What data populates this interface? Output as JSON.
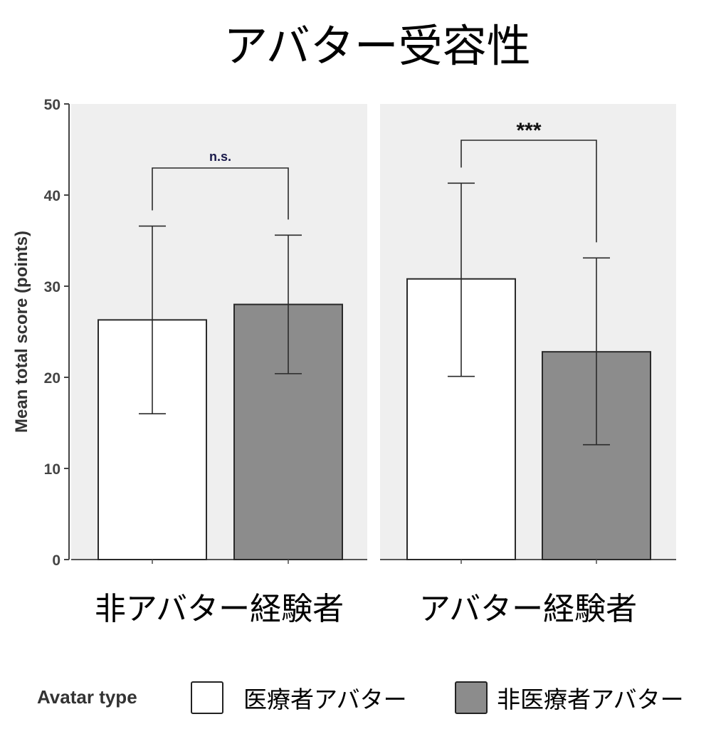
{
  "chart_data": {
    "type": "bar",
    "title": "アバター受容性",
    "ylabel": "Mean total score (points)",
    "ylim": [
      0,
      50
    ],
    "yticks": [
      0,
      10,
      20,
      30,
      40,
      50
    ],
    "grid": false,
    "legend": {
      "title": "Avatar type",
      "placement": "bottom",
      "items": [
        {
          "label": "医療者アバター",
          "color": "#ffffff"
        },
        {
          "label": "非医療者アバター",
          "color": "#8c8c8c"
        }
      ]
    },
    "panels": [
      {
        "label": "非アバター経験者",
        "significance": "n.s.",
        "bars": [
          {
            "series": "医療者アバター",
            "value": 26.3,
            "err_low": 16.0,
            "err_high": 36.6
          },
          {
            "series": "非医療者アバター",
            "value": 28.0,
            "err_low": 20.4,
            "err_high": 35.6
          }
        ]
      },
      {
        "label": "アバター経験者",
        "significance": "***",
        "bars": [
          {
            "series": "医療者アバター",
            "value": 30.8,
            "err_low": 20.1,
            "err_high": 41.3
          },
          {
            "series": "非医療者アバター",
            "value": 22.8,
            "err_low": 12.6,
            "err_high": 33.1
          }
        ]
      }
    ],
    "colors": {
      "panel_bg": "#efefef",
      "bar_medical": "#ffffff",
      "bar_nonmedical": "#8c8c8c",
      "stroke": "#2a2a2a"
    }
  }
}
